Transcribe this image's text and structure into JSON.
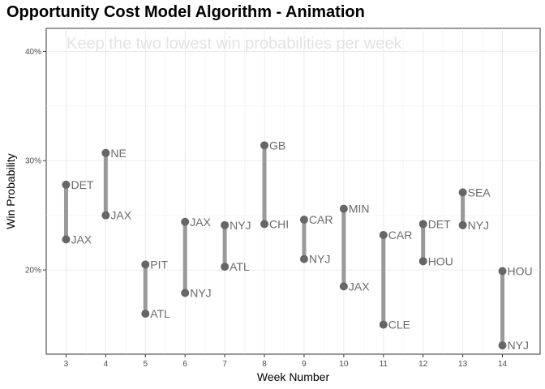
{
  "chart_data": {
    "type": "dumbbell",
    "title": "Opportunity Cost Model Algorithm - Animation",
    "subtitle": "Keep the two lowest win probabilities per week",
    "xlabel": "Week Number",
    "ylabel": "Win Probability",
    "xlim": [
      2.5,
      14.95
    ],
    "ylim": [
      0.123,
      0.421
    ],
    "x_ticks": [
      3,
      4,
      5,
      6,
      7,
      8,
      9,
      10,
      11,
      12,
      13,
      14
    ],
    "x_tick_labels": [
      "3",
      "4",
      "5",
      "6",
      "7",
      "8",
      "9",
      "10",
      "11",
      "12",
      "13",
      "14"
    ],
    "y_ticks": [
      0.2,
      0.3,
      0.4
    ],
    "y_tick_labels": [
      "20%",
      "30%",
      "40%"
    ],
    "grid": true,
    "weeks": [
      {
        "week": 3,
        "high_team": "DET",
        "high": 0.278,
        "low_team": "JAX",
        "low": 0.228
      },
      {
        "week": 4,
        "high_team": "NE",
        "high": 0.307,
        "low_team": "JAX",
        "low": 0.25
      },
      {
        "week": 5,
        "high_team": "PIT",
        "high": 0.205,
        "low_team": "ATL",
        "low": 0.16
      },
      {
        "week": 6,
        "high_team": "JAX",
        "high": 0.244,
        "low_team": "NYJ",
        "low": 0.179
      },
      {
        "week": 7,
        "high_team": "NYJ",
        "high": 0.241,
        "low_team": "ATL",
        "low": 0.203
      },
      {
        "week": 8,
        "high_team": "GB",
        "high": 0.314,
        "low_team": "CHI",
        "low": 0.242
      },
      {
        "week": 9,
        "high_team": "CAR",
        "high": 0.246,
        "low_team": "NYJ",
        "low": 0.21
      },
      {
        "week": 10,
        "high_team": "MIN",
        "high": 0.256,
        "low_team": "JAX",
        "low": 0.185
      },
      {
        "week": 11,
        "high_team": "CAR",
        "high": 0.232,
        "low_team": "CLE",
        "low": 0.15
      },
      {
        "week": 12,
        "high_team": "DET",
        "high": 0.242,
        "low_team": "HOU",
        "low": 0.208
      },
      {
        "week": 13,
        "high_team": "SEA",
        "high": 0.271,
        "low_team": "NYJ",
        "low": 0.241
      },
      {
        "week": 14,
        "high_team": "HOU",
        "high": 0.199,
        "low_team": "NYJ",
        "low": 0.131
      }
    ]
  }
}
